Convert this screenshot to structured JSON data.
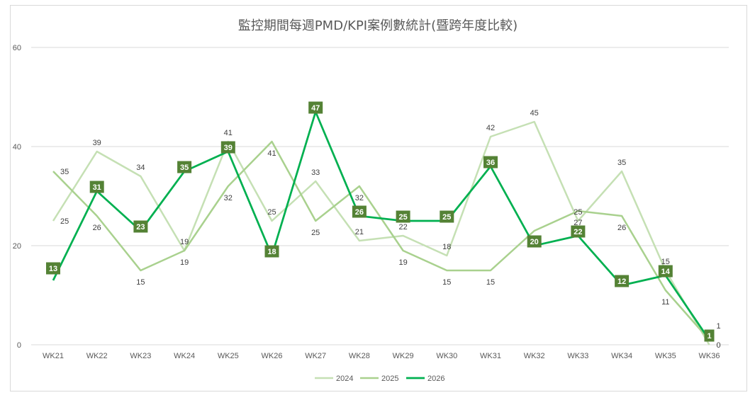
{
  "chart_data": {
    "type": "line",
    "title": "監控期間每週PMD/KPI案例數統計(暨跨年度比較)",
    "categories": [
      "WK21",
      "WK22",
      "WK23",
      "WK24",
      "WK25",
      "WK26",
      "WK27",
      "WK28",
      "WK29",
      "WK30",
      "WK31",
      "WK32",
      "WK33",
      "WK34",
      "WK35",
      "WK36"
    ],
    "ylim": [
      0,
      60
    ],
    "yticks": [
      0,
      20,
      40,
      60
    ],
    "grid": true,
    "legend_position": "bottom",
    "series": [
      {
        "name": "2024",
        "color": "#c5e0b4",
        "values": [
          25,
          39,
          34,
          19,
          41,
          25,
          33,
          21,
          22,
          18,
          42,
          45,
          25,
          35,
          15,
          0
        ]
      },
      {
        "name": "2025",
        "color": "#a9d18e",
        "values": [
          35,
          26,
          15,
          19,
          32,
          41,
          25,
          32,
          19,
          15,
          15,
          23,
          27,
          26,
          11,
          1
        ]
      },
      {
        "name": "2026",
        "color": "#00b050",
        "label_bg": "#548235",
        "values": [
          13,
          31,
          23,
          35,
          39,
          18,
          47,
          26,
          25,
          25,
          36,
          20,
          22,
          12,
          14,
          1
        ]
      }
    ]
  }
}
